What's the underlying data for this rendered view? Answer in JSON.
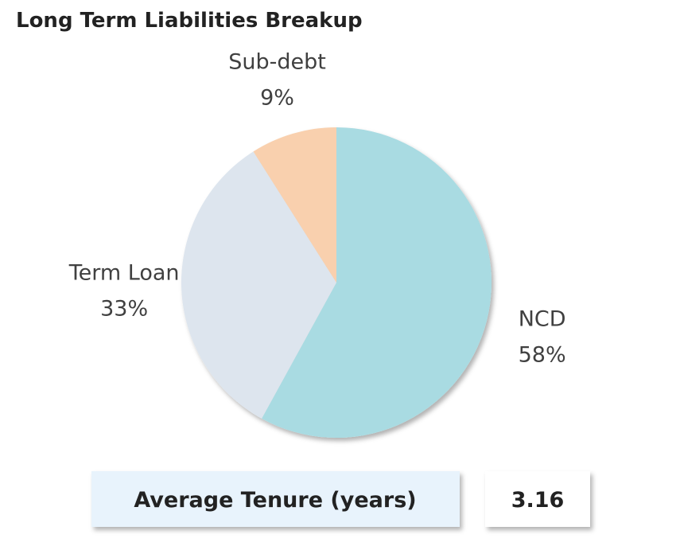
{
  "chart_data": {
    "type": "pie",
    "title": "Long Term Liabilities Breakup",
    "categories": [
      "NCD",
      "Term Loan",
      "Sub-debt"
    ],
    "values": [
      58,
      33,
      9
    ],
    "value_labels": [
      "58%",
      "33%",
      "9%"
    ],
    "colors": [
      "#a9dbe2",
      "#dde5ee",
      "#f9d0ae"
    ],
    "summary": {
      "label": "Average Tenure (years)",
      "value": 3.16
    }
  }
}
